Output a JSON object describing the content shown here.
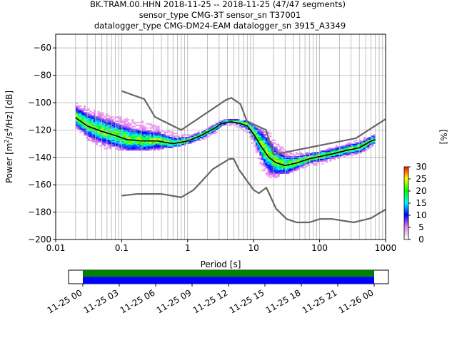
{
  "title_lines": [
    "BK.TRAM.00.HHN   2018-11-25 -- 2018-11-25  (47/47 segments)",
    "sensor_type CMG-3T sensor_sn T37001",
    "datalogger_type CMG-DM24-EAM datalogger_sn 3915_A3349"
  ],
  "chart_data": {
    "type": "heatmap",
    "xlabel": "Period [s]",
    "ylabel_parts": [
      "Power [m",
      "2",
      "/s",
      "4",
      "/Hz] [dB]"
    ],
    "x_scale": "log",
    "xlim": [
      0.01,
      1000
    ],
    "ylim": [
      -200,
      -50
    ],
    "x_ticks": [
      0.01,
      0.1,
      1,
      10,
      100,
      1000
    ],
    "x_tick_labels": [
      "0.01",
      "0.1",
      "1",
      "10",
      "100",
      "1000"
    ],
    "y_ticks": [
      -200,
      -180,
      -160,
      -140,
      -120,
      -100,
      -80,
      -60
    ],
    "y_tick_labels": [
      "−200",
      "−180",
      "−160",
      "−140",
      "−120",
      "−100",
      "−80",
      "−60"
    ],
    "grid": true,
    "colorbar": {
      "label": "[%]",
      "range": [
        0,
        30
      ],
      "ticks": [
        0,
        5,
        10,
        15,
        20,
        25,
        30
      ],
      "tick_labels": [
        "0",
        "5",
        "10",
        "15",
        "20",
        "25",
        "30"
      ],
      "colors": [
        "#ffffff",
        "#ee82ee",
        "#0000ff",
        "#00ffff",
        "#00ff00",
        "#ffff00",
        "#ff0000"
      ]
    },
    "series": [
      {
        "role": "high-noise-model",
        "color": "#666666",
        "x": [
          0.1,
          0.22,
          0.32,
          0.8,
          3.8,
          4.6,
          6.3,
          7.9,
          15.4,
          20,
          354.8,
          1000
        ],
        "y": [
          -91.5,
          -97.4,
          -110.5,
          -120,
          -98,
          -96.5,
          -101,
          -113.5,
          -120,
          -138,
          -126,
          -112
        ]
      },
      {
        "role": "low-noise-model",
        "color": "#666666",
        "x": [
          0.1,
          0.17,
          0.4,
          0.8,
          1.24,
          2.4,
          4.3,
          5,
          6,
          10,
          12,
          15.6,
          21.9,
          31.6,
          45,
          70,
          101,
          154,
          328,
          600,
          1000
        ],
        "y": [
          -168,
          -166.7,
          -166.7,
          -169.2,
          -163.7,
          -148.6,
          -141.1,
          -141.1,
          -149,
          -163.8,
          -166.2,
          -162.1,
          -177.5,
          -185,
          -187.5,
          -187.5,
          -185,
          -185,
          -187.5,
          -184.4,
          -178
        ]
      },
      {
        "role": "mode",
        "color": "#000000",
        "x": [
          0.02,
          0.03,
          0.05,
          0.08,
          0.12,
          0.2,
          0.35,
          0.6,
          1,
          1.6,
          2.5,
          3.3,
          4.5,
          6,
          8,
          10,
          13,
          17,
          22,
          30,
          45,
          70,
          110,
          170,
          250,
          400,
          600,
          700
        ],
        "y": [
          -111,
          -117,
          -121,
          -124,
          -127,
          -128,
          -128,
          -130,
          -128,
          -124,
          -119,
          -115,
          -114,
          -115,
          -117,
          -123,
          -132,
          -140,
          -144,
          -146,
          -144,
          -141,
          -139,
          -137,
          -135,
          -133,
          -128,
          -127
        ]
      }
    ],
    "density_band": {
      "x": [
        0.02,
        0.03,
        0.05,
        0.08,
        0.12,
        0.2,
        0.35,
        0.6,
        1,
        1.6,
        2.5,
        3.3,
        4.5,
        6,
        8,
        10,
        13,
        17,
        22,
        30,
        45,
        70,
        110,
        170,
        250,
        400,
        600,
        700
      ],
      "upper": [
        -100,
        -104,
        -108,
        -110,
        -112,
        -114,
        -118,
        -122,
        -124,
        -121,
        -116,
        -113,
        -113,
        -113,
        -114,
        -118,
        -120,
        -122,
        -130,
        -135,
        -137,
        -137,
        -135,
        -132,
        -130,
        -127,
        -124,
        -124
      ],
      "lower": [
        -120,
        -128,
        -134,
        -135,
        -136,
        -135,
        -135,
        -133,
        -131,
        -128,
        -123,
        -118,
        -117,
        -119,
        -124,
        -134,
        -150,
        -156,
        -155,
        -153,
        -150,
        -147,
        -145,
        -142,
        -140,
        -138,
        -133,
        -131
      ]
    },
    "time_axis": {
      "tick_labels": [
        "11-25 00",
        "11-25 03",
        "11-25 06",
        "11-25 09",
        "11-25 12",
        "11-25 15",
        "11-25 18",
        "11-25 21",
        "11-26 00"
      ],
      "coverage": [
        0,
        1
      ],
      "colors": [
        "#008000",
        "#0000ff"
      ]
    }
  }
}
